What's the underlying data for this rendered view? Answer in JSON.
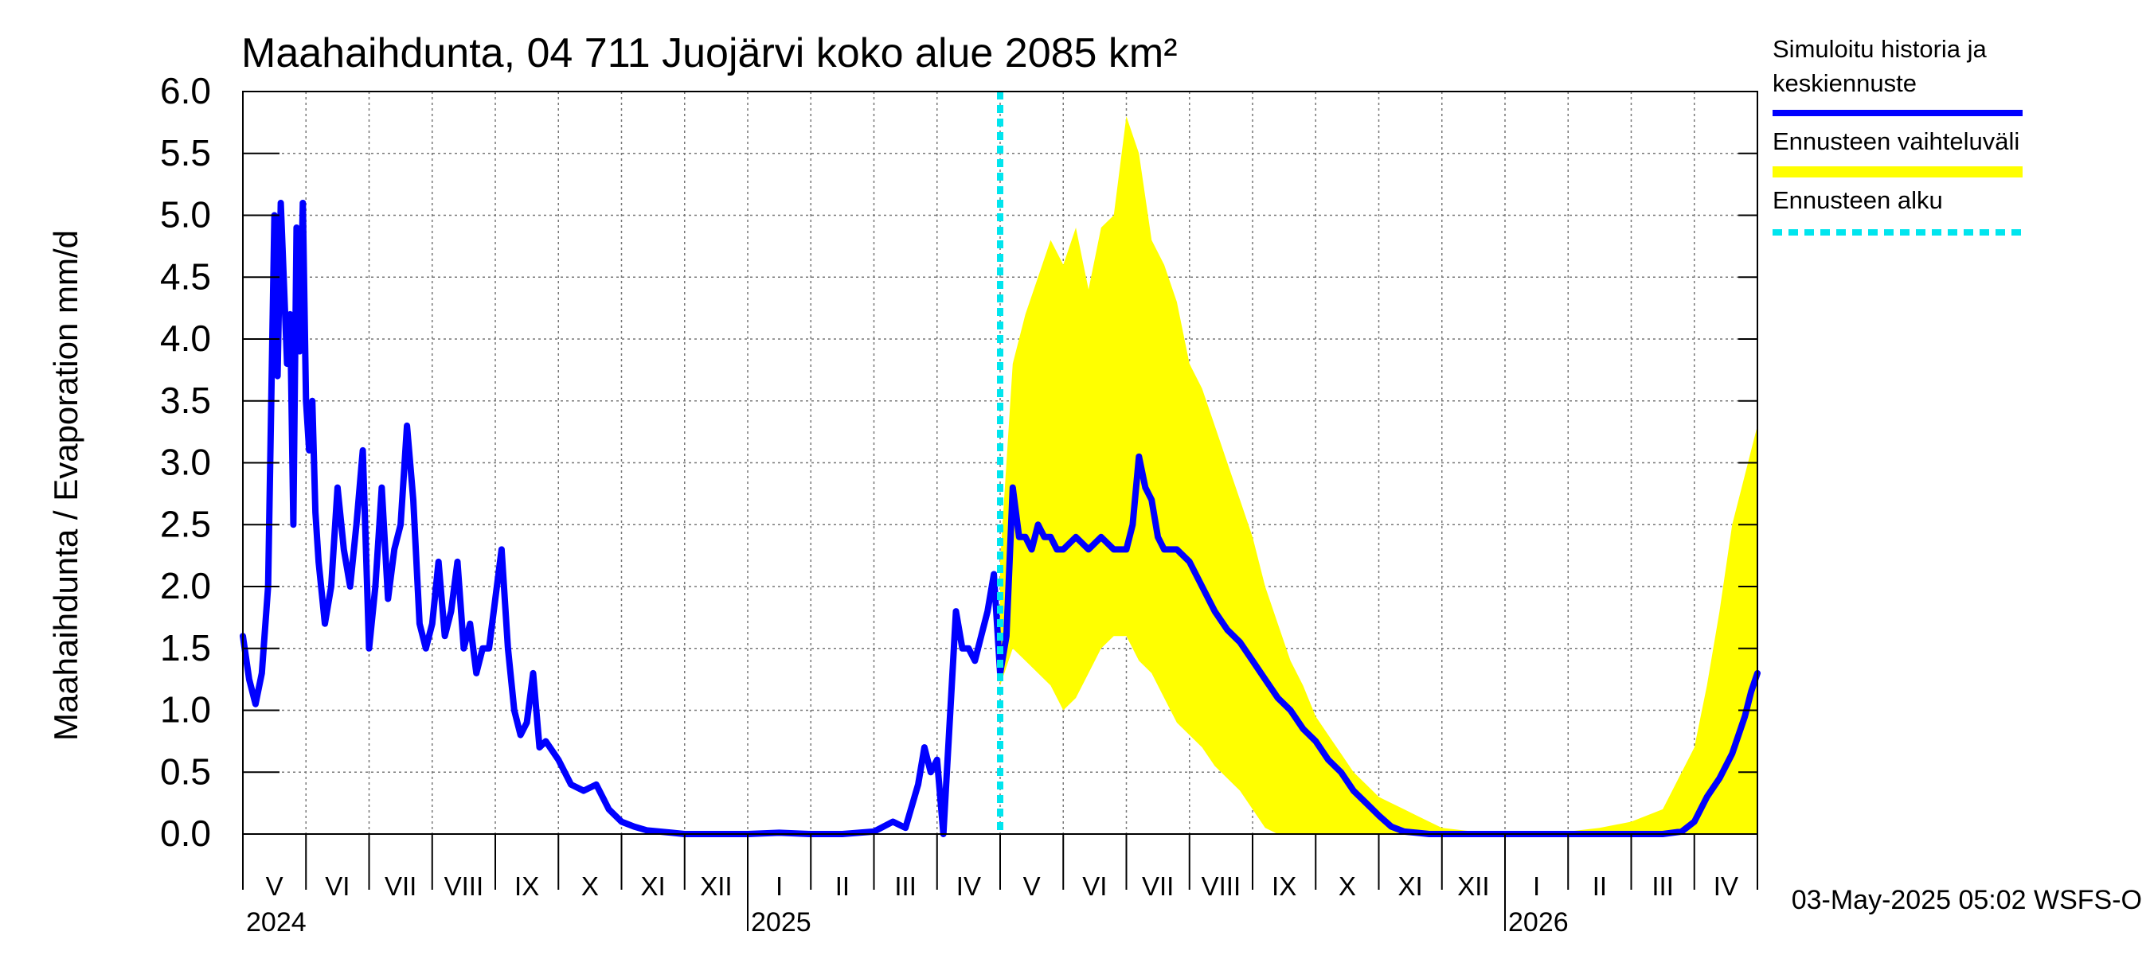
{
  "chart_data": {
    "type": "line",
    "title": "Maahaihdunta, 04 711 Juojärvi koko alue 2085 km²",
    "ylabel": "Maahaihdunta / Evaporation   mm/d",
    "ylim": [
      0,
      6
    ],
    "yticks": [
      "0.0",
      "0.5",
      "1.0",
      "1.5",
      "2.0",
      "2.5",
      "3.0",
      "3.5",
      "4.0",
      "4.5",
      "5.0",
      "5.5",
      "6.0"
    ],
    "grid": true,
    "legend_position": "right",
    "x_range_months": [
      0,
      24
    ],
    "month_labels": [
      "V",
      "VI",
      "VII",
      "VIII",
      "IX",
      "X",
      "XI",
      "XII",
      "I",
      "II",
      "III",
      "IV",
      "V",
      "VI",
      "VII",
      "VIII",
      "IX",
      "X",
      "XI",
      "XII",
      "I",
      "II",
      "III",
      "IV"
    ],
    "year_labels": [
      {
        "label": "2024",
        "month_index": 0
      },
      {
        "label": "2025",
        "month_index": 8
      },
      {
        "label": "2026",
        "month_index": 20
      }
    ],
    "forecast_start_month": 12.0,
    "legend": [
      {
        "label": "Simuloitu historia ja keskiennuste",
        "color": "#0000ff",
        "style": "solid"
      },
      {
        "label": "Ennusteen vaihteluväli",
        "color": "#ffff00",
        "style": "band"
      },
      {
        "label": "Ennusteen alku",
        "color": "#00e5ee",
        "style": "dashed"
      }
    ],
    "series": [
      {
        "name": "Simuloitu historia ja keskiennuste",
        "color": "#0000ff",
        "x": [
          0,
          0.1,
          0.2,
          0.3,
          0.4,
          0.5,
          0.55,
          0.6,
          0.7,
          0.75,
          0.8,
          0.85,
          0.9,
          0.95,
          1.0,
          1.05,
          1.1,
          1.15,
          1.2,
          1.3,
          1.4,
          1.5,
          1.6,
          1.7,
          1.8,
          1.9,
          2.0,
          2.1,
          2.2,
          2.3,
          2.4,
          2.5,
          2.6,
          2.7,
          2.8,
          2.9,
          3.0,
          3.1,
          3.2,
          3.3,
          3.4,
          3.5,
          3.6,
          3.7,
          3.8,
          3.9,
          4.0,
          4.1,
          4.2,
          4.3,
          4.4,
          4.5,
          4.6,
          4.7,
          4.8,
          5.0,
          5.2,
          5.4,
          5.6,
          5.8,
          6.0,
          6.2,
          6.4,
          6.6,
          6.8,
          7.0,
          7.5,
          8.0,
          8.5,
          9.0,
          9.5,
          10.0,
          10.3,
          10.5,
          10.7,
          10.8,
          10.9,
          11.0,
          11.1,
          11.2,
          11.3,
          11.4,
          11.5,
          11.6,
          11.7,
          11.8,
          11.9,
          12.0,
          12.1,
          12.2,
          12.3,
          12.4,
          12.5,
          12.6,
          12.7,
          12.8,
          12.9,
          13.0,
          13.2,
          13.4,
          13.6,
          13.8,
          14.0,
          14.1,
          14.2,
          14.3,
          14.4,
          14.5,
          14.6,
          14.8,
          15.0,
          15.2,
          15.4,
          15.6,
          15.8,
          16.0,
          16.2,
          16.4,
          16.6,
          16.8,
          17.0,
          17.2,
          17.4,
          17.6,
          17.8,
          18.0,
          18.2,
          18.4,
          18.6,
          18.8,
          19.0,
          19.5,
          20.0,
          21.0,
          22.0,
          22.5,
          22.8,
          23.0,
          23.2,
          23.4,
          23.6,
          23.8,
          23.9,
          24.0
        ],
        "values": [
          1.6,
          1.25,
          1.05,
          1.3,
          2.0,
          5.0,
          3.7,
          5.1,
          3.8,
          4.2,
          2.5,
          4.9,
          3.9,
          5.1,
          3.5,
          3.1,
          3.5,
          2.6,
          2.2,
          1.7,
          2.0,
          2.8,
          2.3,
          2.0,
          2.5,
          3.1,
          1.5,
          2.0,
          2.8,
          1.9,
          2.3,
          2.5,
          3.3,
          2.7,
          1.7,
          1.5,
          1.7,
          2.2,
          1.6,
          1.8,
          2.2,
          1.5,
          1.7,
          1.3,
          1.5,
          1.5,
          1.9,
          2.3,
          1.5,
          1.0,
          0.8,
          0.9,
          1.3,
          0.7,
          0.75,
          0.6,
          0.4,
          0.35,
          0.4,
          0.2,
          0.1,
          0.06,
          0.03,
          0.02,
          0.01,
          0.0,
          0.0,
          0.0,
          0.01,
          0.0,
          0.0,
          0.02,
          0.1,
          0.05,
          0.4,
          0.7,
          0.5,
          0.6,
          0.0,
          0.9,
          1.8,
          1.5,
          1.5,
          1.4,
          1.6,
          1.8,
          2.1,
          1.3,
          1.6,
          2.8,
          2.4,
          2.4,
          2.3,
          2.5,
          2.4,
          2.4,
          2.3,
          2.3,
          2.4,
          2.3,
          2.4,
          2.3,
          2.3,
          2.5,
          3.05,
          2.8,
          2.7,
          2.4,
          2.3,
          2.3,
          2.2,
          2.0,
          1.8,
          1.65,
          1.55,
          1.4,
          1.25,
          1.1,
          1.0,
          0.85,
          0.75,
          0.6,
          0.5,
          0.35,
          0.25,
          0.15,
          0.06,
          0.02,
          0.01,
          0.0,
          0.0,
          0.0,
          0.0,
          0.0,
          0.0,
          0.0,
          0.02,
          0.1,
          0.3,
          0.45,
          0.65,
          0.95,
          1.15,
          1.3
        ]
      }
    ],
    "band": {
      "name": "Ennusteen vaihteluväli",
      "color": "#ffff00",
      "x": [
        12.0,
        12.2,
        12.4,
        12.6,
        12.8,
        13.0,
        13.2,
        13.4,
        13.6,
        13.8,
        14.0,
        14.2,
        14.4,
        14.6,
        14.8,
        15.0,
        15.2,
        15.4,
        15.6,
        15.8,
        16.0,
        16.2,
        16.4,
        16.6,
        16.8,
        17.0,
        17.2,
        17.4,
        17.6,
        17.8,
        18.0,
        18.2,
        18.4,
        18.6,
        18.8,
        19.0,
        19.5,
        20.0,
        21.0,
        21.5,
        22.0,
        22.5,
        23.0,
        23.2,
        23.4,
        23.6,
        23.8,
        24.0
      ],
      "upper": [
        2.2,
        3.8,
        4.2,
        4.5,
        4.8,
        4.6,
        4.9,
        4.4,
        4.9,
        5.0,
        5.8,
        5.5,
        4.8,
        4.6,
        4.3,
        3.8,
        3.6,
        3.3,
        3.0,
        2.7,
        2.4,
        2.0,
        1.7,
        1.4,
        1.2,
        0.95,
        0.8,
        0.65,
        0.5,
        0.4,
        0.3,
        0.25,
        0.2,
        0.15,
        0.1,
        0.05,
        0.02,
        0.01,
        0.02,
        0.05,
        0.1,
        0.2,
        0.7,
        1.2,
        1.8,
        2.5,
        2.9,
        3.3
      ],
      "lower": [
        1.2,
        1.5,
        1.4,
        1.3,
        1.2,
        1.0,
        1.1,
        1.3,
        1.5,
        1.6,
        1.6,
        1.4,
        1.3,
        1.1,
        0.9,
        0.8,
        0.7,
        0.55,
        0.45,
        0.35,
        0.2,
        0.05,
        0.0,
        0.0,
        0.0,
        0.0,
        0.0,
        0.0,
        0.0,
        0.0,
        0.0,
        0.0,
        0.0,
        0.0,
        0.0,
        0.0,
        0.0,
        0.0,
        0.0,
        0.0,
        0.0,
        0.0,
        0.0,
        0.0,
        0.0,
        0.0,
        0.0,
        0.0
      ]
    }
  },
  "footer": {
    "timestamp": "03-May-2025 05:02 WSFS-O"
  }
}
